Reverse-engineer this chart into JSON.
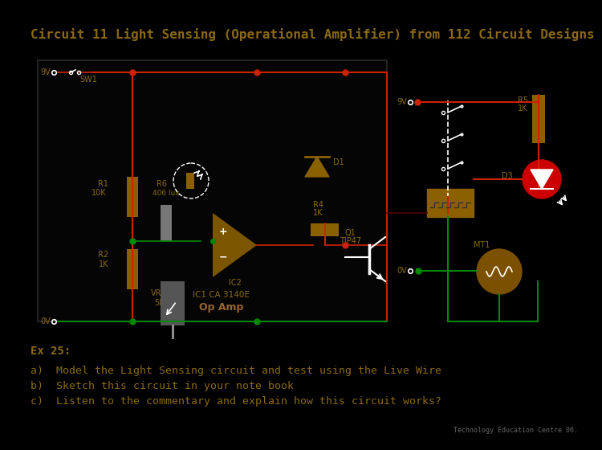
{
  "bg_color": "#000000",
  "title": "Circuit 11 Light Sensing (Operational Amplifier) from 112 Circuit Designs",
  "title_color": "#8B6914",
  "title_fontsize": 11.5,
  "wire_color_red": "#cc2200",
  "wire_color_green": "#008800",
  "component_color": "#8B6000",
  "text_color": "#8B6914",
  "opamp_color": "#7B5500",
  "highlight_color": "#996633",
  "relay_color": "#7B5500",
  "red_led_color": "#cc0000",
  "motor_color": "#7B5000",
  "ex_text": "Ex 25:",
  "qa": "a)  Model the Light Sensing circuit and test using the Live Wire",
  "qb": "b)  Sketch this circuit in your note book",
  "qc": "c)  Listen to the commentary and explain how this circuit works?",
  "footer": "Technology Education Centre 06.",
  "opamp_label": "IC1 CA 3140E",
  "opamp_sublabel": "Op Amp",
  "white": "#ffffff",
  "gray": "#888888",
  "darkgray": "#444444"
}
